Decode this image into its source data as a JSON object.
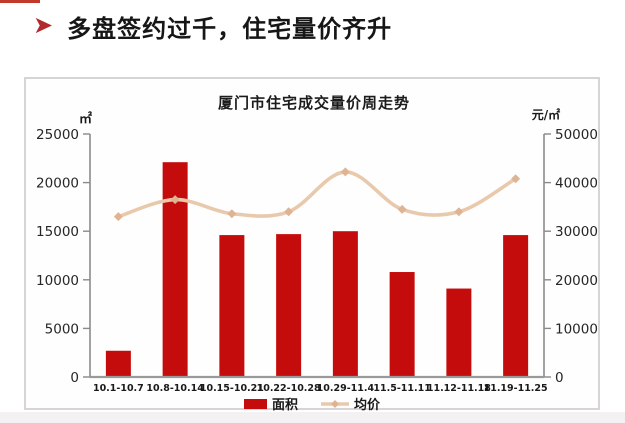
{
  "page": {
    "header": {
      "bullet_icon": "arrow-right",
      "title": "多盘签约过千，住宅量价齐升"
    }
  },
  "chart_data": {
    "type": "bar",
    "title": "厦门市住宅成交量价周走势",
    "categories": [
      "10.1-10.7",
      "10.8-10.14",
      "10.15-10.21",
      "10.22-10.28",
      "10.29-11.4",
      "11.5-11.11",
      "11.12-11.18",
      "11.19-11.25"
    ],
    "series": [
      {
        "name": "面积",
        "type": "bar",
        "axis": "left",
        "color": "#c50c0c",
        "values": [
          2700,
          22100,
          14600,
          14700,
          15000,
          10800,
          9100,
          14600
        ]
      },
      {
        "name": "均价",
        "type": "line",
        "axis": "right",
        "color": "#e9c9ac",
        "marker_color": "#dfb493",
        "values": [
          33000,
          36500,
          33600,
          34000,
          42200,
          34500,
          34000,
          40800
        ]
      }
    ],
    "left_axis": {
      "unit": "㎡",
      "min": 0,
      "max": 25000,
      "step": 5000,
      "ticks": [
        "0",
        "5000",
        "10000",
        "15000",
        "20000",
        "25000"
      ]
    },
    "right_axis": {
      "unit": "元/㎡",
      "min": 0,
      "max": 50000,
      "step": 10000,
      "ticks": [
        "0",
        "10000",
        "20000",
        "30000",
        "40000",
        "50000"
      ]
    },
    "legend": [
      {
        "label": "面积",
        "swatch": "bar-swatch"
      },
      {
        "label": "均价",
        "swatch": "line-swatch"
      }
    ],
    "legend_position": "bottom",
    "grid": false,
    "colors": {
      "axis_line": "#8a8a8a",
      "baseline": "#9a9a9a",
      "tick_text": "#262626",
      "label_text": "#1a1a1a"
    }
  }
}
